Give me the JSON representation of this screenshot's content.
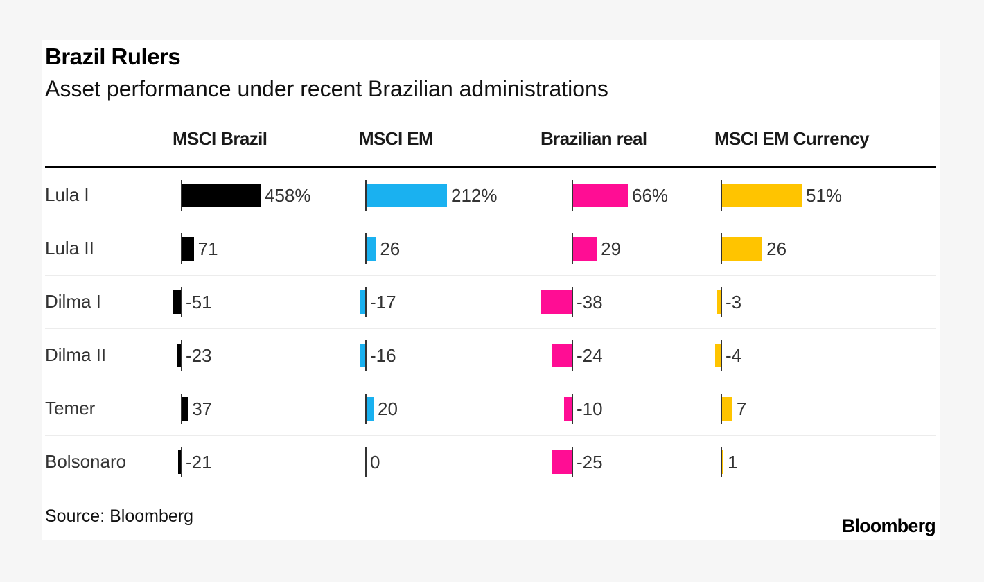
{
  "chart_data": {
    "type": "bar",
    "title": "Brazil Rulers",
    "subtitle": "Asset performance under recent Brazilian administrations",
    "categories": [
      "Lula I",
      "Lula II",
      "Dilma I",
      "Dilma II",
      "Temer",
      "Bolsonaro"
    ],
    "series": [
      {
        "name": "MSCI Brazil",
        "color": "#000000",
        "values": [
          458,
          71,
          -51,
          -23,
          37,
          -21
        ],
        "labels": [
          "458%",
          "71",
          "-51",
          "-23",
          "37",
          "-21"
        ]
      },
      {
        "name": "MSCI EM",
        "color": "#1ab1f0",
        "values": [
          212,
          26,
          -17,
          -16,
          20,
          0
        ],
        "labels": [
          "212%",
          "26",
          "-17",
          "-16",
          "20",
          "0"
        ]
      },
      {
        "name": "Brazilian real",
        "color": "#ff0d94",
        "values": [
          66,
          29,
          -38,
          -24,
          -10,
          -25
        ],
        "labels": [
          "66%",
          "29",
          "-38",
          "-24",
          "-10",
          "-25"
        ]
      },
      {
        "name": "MSCI EM Currency",
        "color": "#ffc400",
        "values": [
          51,
          26,
          -3,
          -4,
          7,
          1
        ],
        "labels": [
          "51%",
          "26",
          "-3",
          "-4",
          "7",
          "1"
        ]
      }
    ],
    "source": "Source: Bloomberg",
    "brand": "Bloomberg"
  }
}
